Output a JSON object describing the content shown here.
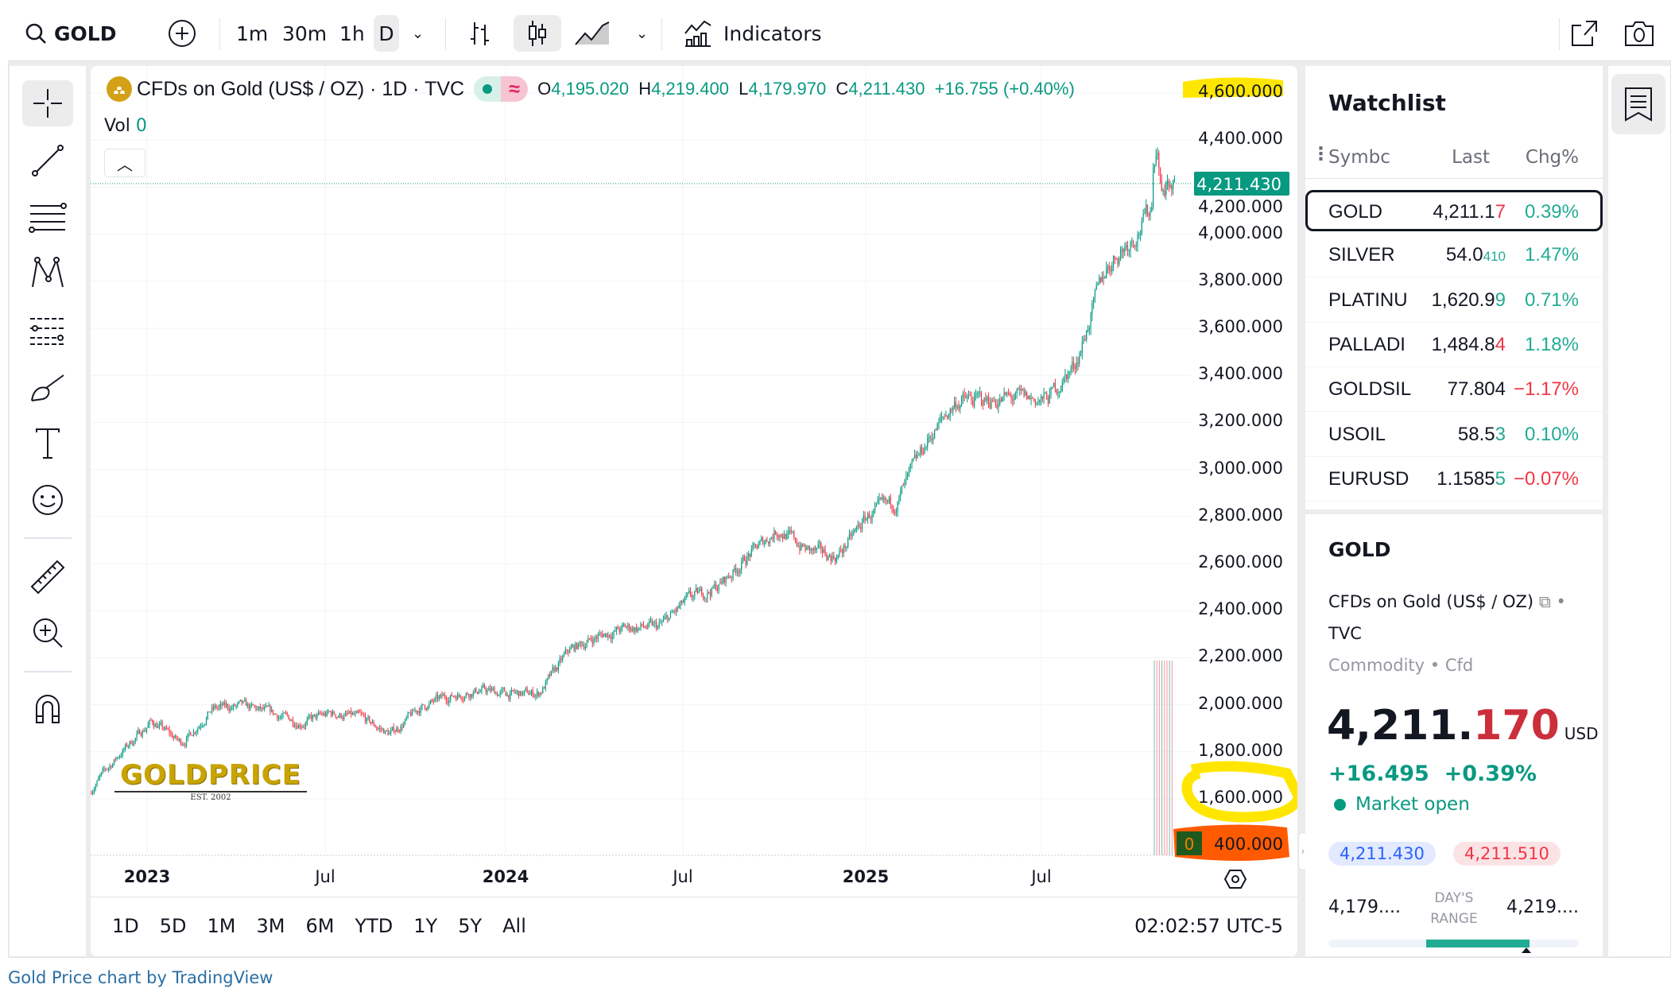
{
  "toolbar": {
    "symbol": "GOLD",
    "intervals": [
      "1m",
      "30m",
      "1h",
      "D"
    ],
    "selected_interval": "D",
    "indicators_label": "Indicators"
  },
  "legend": {
    "title": "CFDs on Gold (US$ / OZ) · 1D · TVC",
    "o_label": "O",
    "o": "4,195.020",
    "h_label": "H",
    "h": "4,219.400",
    "l_label": "L",
    "l": "4,179.970",
    "c_label": "C",
    "c": "4,211.430",
    "change": "+16.755 (+0.40%)",
    "vol_label": "Vol",
    "vol": "0",
    "wave_glyph": "≈"
  },
  "price_axis": {
    "labels": [
      "4,600.000",
      "4,400.000",
      "4,200.000",
      "4,000.000",
      "3,800.000",
      "3,600.000",
      "3,400.000",
      "3,200.000",
      "3,000.000",
      "2,800.000",
      "2,600.000",
      "2,400.000",
      "2,200.000",
      "2,000.000",
      "1,800.000",
      "1,600.000",
      "400.000"
    ],
    "current": "4,211.430",
    "vol_badge": "0"
  },
  "time_axis": {
    "labels": [
      "2023",
      "Jul",
      "2024",
      "Jul",
      "2025",
      "Jul"
    ]
  },
  "ranges": [
    "1D",
    "5D",
    "1M",
    "3M",
    "6M",
    "YTD",
    "1Y",
    "5Y",
    "All"
  ],
  "clock": "02:02:57 UTC-5",
  "logo": {
    "text": "GOLDPRICE",
    "sub": "EST. 2002"
  },
  "chart_data": {
    "type": "candlestick",
    "symbol": "GOLD",
    "interval": "1D",
    "ylim": [
      1500,
      4600
    ],
    "monthly_closes": {
      "x": [
        "2022-11",
        "2022-12",
        "2023-01",
        "2023-02",
        "2023-03",
        "2023-04",
        "2023-05",
        "2023-06",
        "2023-07",
        "2023-08",
        "2023-09",
        "2023-10",
        "2023-11",
        "2023-12",
        "2024-01",
        "2024-02",
        "2024-03",
        "2024-04",
        "2024-05",
        "2024-06",
        "2024-07",
        "2024-08",
        "2024-09",
        "2024-10",
        "2024-11",
        "2024-12",
        "2025-01",
        "2025-02",
        "2025-03",
        "2025-04",
        "2025-05",
        "2025-06",
        "2025-07",
        "2025-08",
        "2025-09",
        "2025-10",
        "2025-11"
      ],
      "y": [
        1650,
        1800,
        1930,
        1830,
        1980,
        1990,
        1960,
        1920,
        1960,
        1940,
        1870,
        1985,
        2035,
        2060,
        2040,
        2045,
        2230,
        2290,
        2325,
        2325,
        2445,
        2500,
        2630,
        2745,
        2650,
        2625,
        2800,
        2860,
        3120,
        3290,
        3290,
        3300,
        3290,
        3450,
        3860,
        4000,
        4211
      ]
    },
    "last_close": 4211.43,
    "up_color": "#089981",
    "down_color": "#f23645"
  },
  "watchlist": {
    "title": "Watchlist",
    "headers": [
      "Symbc",
      "Last",
      "Chg%"
    ],
    "rows": [
      {
        "symbol": "GOLD",
        "last_a": "4,211.1",
        "last_b": "7",
        "chg": "0.39%",
        "dir": "up",
        "last_dir": "down"
      },
      {
        "symbol": "SILVER",
        "last_a": "54.0",
        "last_b": "410",
        "chg": "1.47%",
        "dir": "up",
        "last_dir": "up"
      },
      {
        "symbol": "PLATINU",
        "last_a": "1,620.9",
        "last_b": "9",
        "chg": "0.71%",
        "dir": "up",
        "last_dir": "up"
      },
      {
        "symbol": "PALLADI",
        "last_a": "1,484.8",
        "last_b": "4",
        "chg": "1.18%",
        "dir": "up",
        "last_dir": "down"
      },
      {
        "symbol": "GOLDSIL",
        "last_a": "77.804",
        "last_b": "",
        "chg": "−1.17%",
        "dir": "down",
        "last_dir": "none"
      },
      {
        "symbol": "USOIL",
        "last_a": "58.5",
        "last_b": "3",
        "chg": "0.10%",
        "dir": "up",
        "last_dir": "up"
      },
      {
        "symbol": "EURUSD",
        "last_a": "1.1585",
        "last_b": "5",
        "chg": "−0.07%",
        "dir": "down",
        "last_dir": "up"
      }
    ]
  },
  "details": {
    "symbol": "GOLD",
    "desc": "CFDs on Gold (US$ / OZ)",
    "exchange": "TVC",
    "type": "Commodity",
    "subtype": "Cfd",
    "price_main": "4,211.",
    "price_frac": "170",
    "currency": "USD",
    "change": "+16.495",
    "change_pct": "+0.39%",
    "market_status": "Market open",
    "bid": "4,211.430",
    "ask": "4,211.510",
    "day_low": "4,179....",
    "day_high": "4,219....",
    "range_label_1": "DAY'S",
    "range_label_2": "RANGE",
    "day_range_position": 0.79
  },
  "footer": "Gold Price chart by TradingView"
}
